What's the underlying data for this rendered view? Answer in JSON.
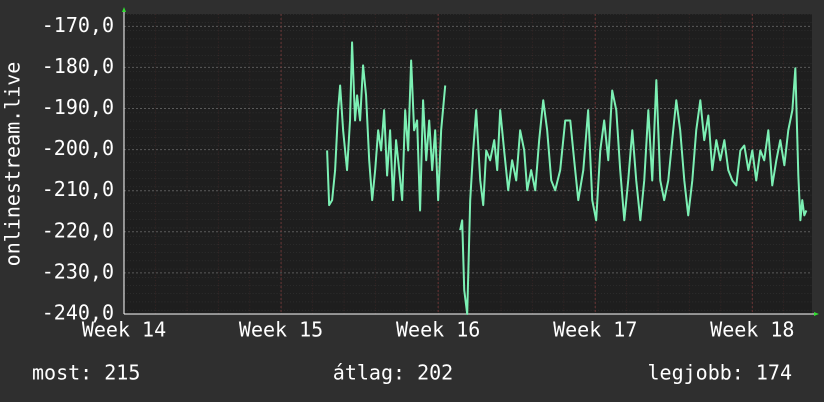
{
  "chart_data": {
    "type": "line",
    "y_label": "onlinestream.live",
    "xlim": [
      14,
      18.38
    ],
    "xticks": [
      {
        "value": 14,
        "label": "Week 14"
      },
      {
        "value": 15,
        "label": "Week 15"
      },
      {
        "value": 16,
        "label": "Week 16"
      },
      {
        "value": 17,
        "label": "Week 17"
      },
      {
        "value": 18,
        "label": "Week 18"
      }
    ],
    "ylim": [
      -240,
      -167
    ],
    "yticks": [
      {
        "value": -240,
        "label": "-240,0"
      },
      {
        "value": -230,
        "label": "-230,0"
      },
      {
        "value": -220,
        "label": "-220,0"
      },
      {
        "value": -210,
        "label": "-210,0"
      },
      {
        "value": -200,
        "label": "-200,0"
      },
      {
        "value": -190,
        "label": "-190,0"
      },
      {
        "value": -180,
        "label": "-180,0"
      },
      {
        "value": -170,
        "label": "-170,0"
      }
    ],
    "grid": true,
    "color": "#7cf0b4",
    "x": [
      15.293,
      15.306,
      15.325,
      15.344,
      15.363,
      15.376,
      15.395,
      15.42,
      15.439,
      15.452,
      15.471,
      15.484,
      15.503,
      15.522,
      15.541,
      15.561,
      15.58,
      15.599,
      15.618,
      15.637,
      15.656,
      15.675,
      15.694,
      15.713,
      15.732,
      15.752,
      15.771,
      15.79,
      15.809,
      15.828,
      15.847,
      15.866,
      15.885,
      15.904,
      15.924,
      15.943,
      15.962,
      15.981,
      16.0,
      16.019,
      16.045,
      16.07,
      16.14,
      16.153,
      16.166,
      16.185,
      16.204,
      16.223,
      16.242,
      16.268,
      16.287,
      16.306,
      16.331,
      16.357,
      16.376,
      16.395,
      16.42,
      16.446,
      16.471,
      16.497,
      16.522,
      16.548,
      16.567,
      16.592,
      16.618,
      16.643,
      16.669,
      16.694,
      16.72,
      16.745,
      16.777,
      16.809,
      16.841,
      16.866,
      16.892,
      16.924,
      16.955,
      16.981,
      17.006,
      17.032,
      17.057,
      17.083,
      17.108,
      17.134,
      17.159,
      17.185,
      17.21,
      17.236,
      17.261,
      17.287,
      17.312,
      17.338,
      17.363,
      17.389,
      17.414,
      17.439,
      17.465,
      17.49,
      17.516,
      17.541,
      17.567,
      17.592,
      17.618,
      17.643,
      17.669,
      17.694,
      17.72,
      17.745,
      17.771,
      17.796,
      17.822,
      17.847,
      17.873,
      17.898,
      17.924,
      17.949,
      17.975,
      18.0,
      18.025,
      18.051,
      18.076,
      18.102,
      18.127,
      18.153,
      18.178,
      18.204,
      18.229,
      18.255,
      18.274,
      18.293,
      18.306,
      18.318,
      18.331,
      18.344
    ],
    "values": [
      -200.2,
      -213.5,
      -212.3,
      -205,
      -190.4,
      -184.4,
      -195.3,
      -205,
      -192.9,
      -173.9,
      -192.9,
      -186.8,
      -192.9,
      -179.5,
      -186.8,
      -202.6,
      -212.3,
      -205,
      -195.3,
      -200.2,
      -190.4,
      -206.3,
      -195.3,
      -212.3,
      -197.7,
      -205,
      -212.3,
      -190.4,
      -200.2,
      -178.3,
      -195.3,
      -192.9,
      -214.8,
      -188,
      -202.6,
      -192.9,
      -205,
      -195.3,
      -212.3,
      -195.3,
      -184.4,
      null,
      -219.6,
      -217.2,
      -234.2,
      -240,
      -212.3,
      -200.2,
      -190.4,
      -207.5,
      -213.5,
      -200.2,
      -202.6,
      -197.7,
      -205,
      -190.4,
      -200.2,
      -209.9,
      -202.6,
      -207.5,
      -195.3,
      -200.2,
      -209.9,
      -205,
      -209.9,
      -197.7,
      -188,
      -195.3,
      -207.5,
      -209.9,
      -205,
      -192.9,
      -192.9,
      -202.6,
      -212.3,
      -205,
      -190.4,
      -212.3,
      -217.2,
      -200.2,
      -192.9,
      -202.6,
      -185.6,
      -190.4,
      -205,
      -217.2,
      -207.5,
      -195.3,
      -207.5,
      -217.2,
      -207.5,
      -190.4,
      -207.5,
      -183.1,
      -207.5,
      -212.3,
      -207.5,
      -197.7,
      -188,
      -195.3,
      -207.5,
      -216,
      -207.5,
      -195.3,
      -188,
      -197.7,
      -191.7,
      -205,
      -197.7,
      -202.6,
      -197.7,
      -205,
      -207.5,
      -208.7,
      -200.2,
      -199,
      -205,
      -200.2,
      -207.5,
      -200.2,
      -202.6,
      -195.3,
      -208.7,
      -202.6,
      -197.7,
      -203.8,
      -195.3,
      -190.4,
      -180.2,
      -206.3,
      -217.2,
      -212.3,
      -216,
      -214.8
    ],
    "stats": [
      {
        "label": "most: 215"
      },
      {
        "label": "átlag: 202"
      },
      {
        "label": "legjobb: 174"
      }
    ]
  }
}
